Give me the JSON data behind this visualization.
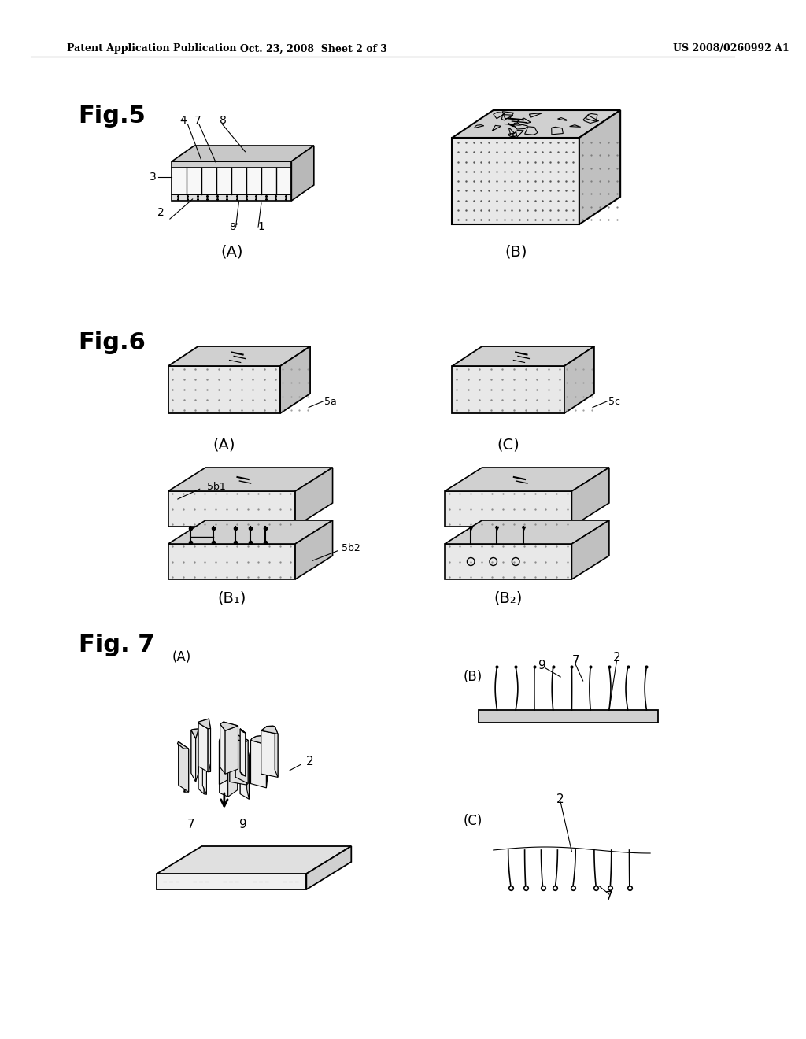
{
  "header_left": "Patent Application Publication",
  "header_mid": "Oct. 23, 2008  Sheet 2 of 3",
  "header_right": "US 2008/0260992 A1",
  "fig5_label": "Fig.5",
  "fig6_label": "Fig.6",
  "fig7_label": "Fig. 7",
  "background_color": "#ffffff",
  "line_color": "#000000",
  "text_color": "#000000"
}
